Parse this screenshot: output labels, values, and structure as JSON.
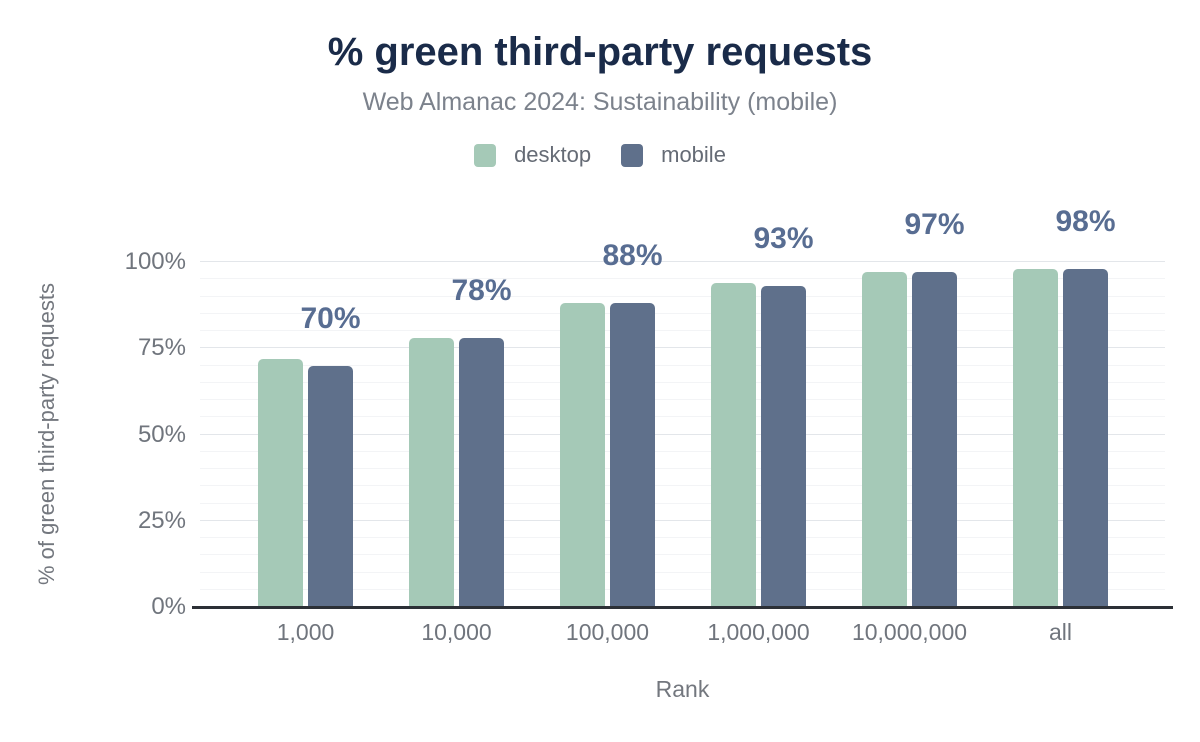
{
  "chart_data": {
    "type": "bar",
    "title": "% green third-party requests",
    "subtitle": "Web Almanac 2024: Sustainability (mobile)",
    "categories": [
      "1,000",
      "10,000",
      "100,000",
      "1,000,000",
      "10,000,000",
      "all"
    ],
    "series": [
      {
        "name": "desktop",
        "color": "#a5c9b7",
        "values": [
          72,
          78,
          88,
          94,
          97,
          98
        ]
      },
      {
        "name": "mobile",
        "color": "#5f708b",
        "values": [
          70,
          78,
          88,
          93,
          97,
          98
        ]
      }
    ],
    "bar_labels": {
      "series": "mobile",
      "values": [
        "70%",
        "78%",
        "88%",
        "93%",
        "97%",
        "98%"
      ]
    },
    "xlabel": "Rank",
    "ylabel": "% of green third-party requests",
    "ylim": [
      0,
      100
    ],
    "yticks": [
      "0%",
      "25%",
      "50%",
      "75%",
      "100%"
    ],
    "grid": {
      "on": true,
      "minor_step_pct": 5,
      "major_step_pct": 25
    },
    "legend_position": "top",
    "colors": {
      "title": "#1a2b49",
      "subtitle": "#7c828c",
      "value_label": "#586d92",
      "axis_text": "#70757d",
      "legend_text": "#656b75",
      "axis_line": "#2c3036",
      "grid_major": "#e3e6ea",
      "grid_minor": "#f3f4f6",
      "background": "#ffffff"
    }
  }
}
